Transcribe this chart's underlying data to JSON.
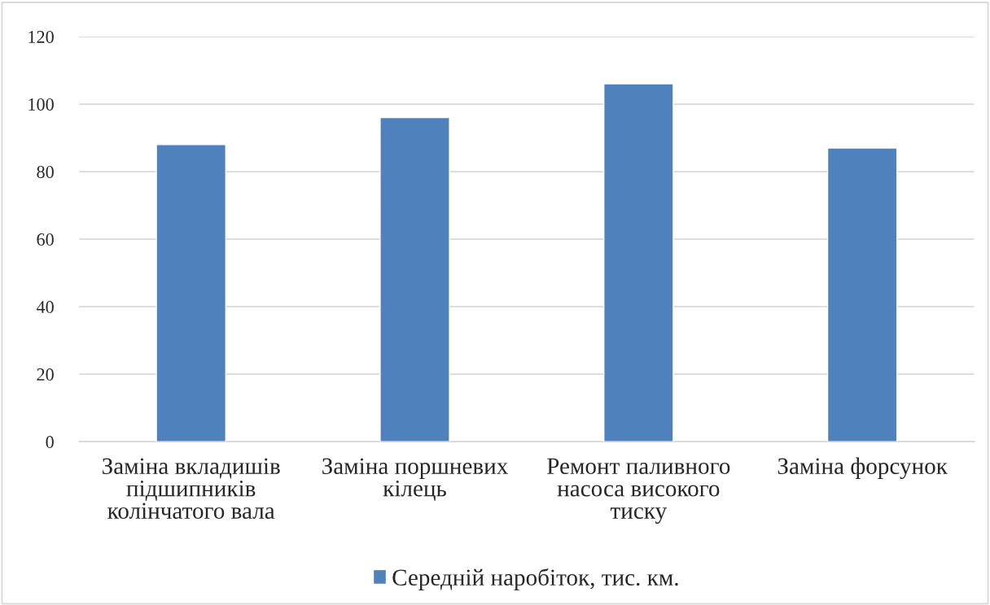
{
  "chart_data": {
    "type": "bar",
    "categories": [
      "Заміна вкладишів\nпідшипників\nколінчатого вала",
      "Заміна поршневих\nкілець",
      "Ремонт паливного\nнасоса високого\nтиску",
      "Заміна форсунок"
    ],
    "series": [
      {
        "name": "Середній наробіток, тис. км.",
        "color": "#4f81bd",
        "values": [
          88,
          96,
          106,
          87
        ]
      }
    ],
    "ylim": [
      0,
      120
    ],
    "yticks": [
      0,
      20,
      40,
      60,
      80,
      100,
      120
    ],
    "grid": "y",
    "legend": "bottom"
  }
}
